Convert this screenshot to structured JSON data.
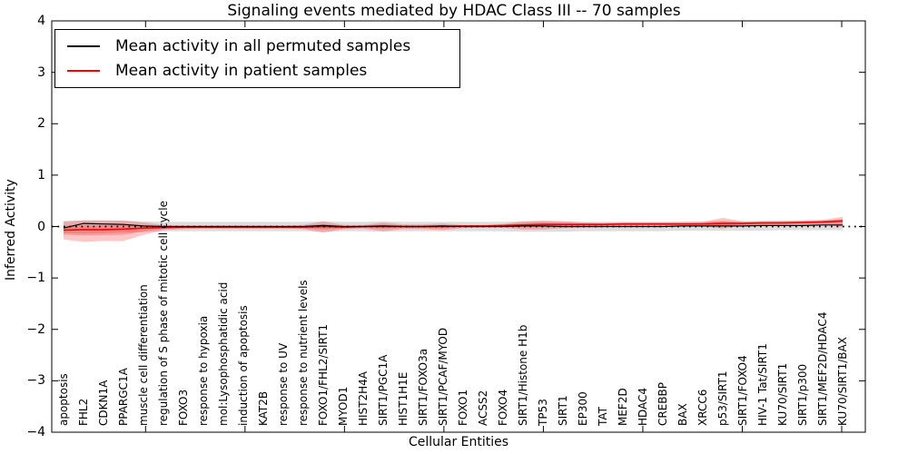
{
  "title": "Signaling events mediated by HDAC Class III -- 70 samples",
  "legend": {
    "items": [
      {
        "label": "Mean activity in all permuted samples",
        "color": "#000000"
      },
      {
        "label": "Mean activity in patient samples",
        "color": "#ff0000"
      }
    ]
  },
  "chart_data": {
    "type": "line",
    "title": "Signaling events mediated by HDAC Class III -- 70 samples",
    "xlabel": "Cellular Entities",
    "ylabel": "Inferred Activity",
    "ylim": [
      -4,
      4
    ],
    "ytick_labels": [
      "4",
      "3",
      "2",
      "1",
      "0",
      "−1",
      "−2",
      "−3",
      "−4"
    ],
    "ytick_values": [
      4,
      3,
      2,
      1,
      0,
      -1,
      -2,
      -3,
      -4
    ],
    "grid": false,
    "zero_line": true,
    "legend_position": "upper left",
    "categories": [
      "apoptosis",
      "FHL2",
      "CDKN1A",
      "PPARGC1A",
      "muscle cell differentiation",
      "regulation of S phase of mitotic cell cycle",
      "FOXO3",
      "response to hypoxia",
      "mol:Lysophosphatidic acid",
      "induction of apoptosis",
      "KAT2B",
      "response to UV",
      "response to nutrient levels",
      "FOXO1/FHL2/SIRT1",
      "MYOD1",
      "HIST2H4A",
      "SIRT1/PGC1A",
      "HIST1H1E",
      "SIRT1/FOXO3a",
      "SIRT1/PCAF/MYOD",
      "FOXO1",
      "ACSS2",
      "FOXO4",
      "SIRT1/Histone H1b",
      "TP53",
      "SIRT1",
      "EP300",
      "TAT",
      "MEF2D",
      "HDAC4",
      "CREBBP",
      "BAX",
      "XRCC6",
      "p53/SIRT1",
      "SIRT1/FOXO4",
      "HIV-1 Tat/SIRT1",
      "KU70/SIRT1",
      "SIRT1/p300",
      "SIRT1/MEF2D/HDAC4",
      "KU70/SIRT1/BAX"
    ],
    "series": [
      {
        "name": "Mean activity in all permuted samples",
        "color": "#000000",
        "band_color": "rgba(0,0,0,0.13)",
        "values": [
          -0.03,
          0.06,
          0.05,
          0.04,
          0.01,
          0.0,
          0.0,
          0.0,
          0.0,
          0.0,
          0.0,
          0.0,
          0.0,
          0.02,
          0.0,
          0.0,
          0.01,
          0.0,
          0.0,
          0.01,
          0.0,
          0.0,
          0.0,
          0.01,
          0.01,
          0.0,
          0.0,
          0.0,
          0.0,
          0.0,
          0.0,
          0.01,
          0.01,
          0.01,
          0.01,
          0.02,
          0.02,
          0.02,
          0.03,
          0.03
        ],
        "band_upper": [
          0.1,
          0.12,
          0.12,
          0.11,
          0.1,
          0.09,
          0.09,
          0.09,
          0.09,
          0.09,
          0.09,
          0.09,
          0.09,
          0.1,
          0.09,
          0.09,
          0.1,
          0.09,
          0.09,
          0.09,
          0.09,
          0.09,
          0.09,
          0.1,
          0.1,
          0.1,
          0.09,
          0.09,
          0.09,
          0.09,
          0.09,
          0.1,
          0.1,
          0.1,
          0.1,
          0.1,
          0.11,
          0.11,
          0.12,
          0.12
        ],
        "band_lower": [
          -0.13,
          -0.14,
          -0.13,
          -0.12,
          -0.11,
          -0.09,
          -0.09,
          -0.09,
          -0.09,
          -0.09,
          -0.09,
          -0.09,
          -0.09,
          -0.1,
          -0.09,
          -0.09,
          -0.1,
          -0.09,
          -0.09,
          -0.09,
          -0.09,
          -0.09,
          -0.09,
          -0.1,
          -0.1,
          -0.1,
          -0.09,
          -0.09,
          -0.09,
          -0.09,
          -0.09,
          -0.08,
          -0.08,
          -0.08,
          -0.08,
          -0.08,
          -0.07,
          -0.07,
          -0.07,
          -0.07
        ]
      },
      {
        "name": "Mean activity in patient samples",
        "color": "#ff0000",
        "band_color": "rgba(255,0,0,0.22)",
        "values": [
          -0.07,
          -0.06,
          -0.06,
          -0.05,
          -0.03,
          -0.02,
          -0.01,
          -0.01,
          -0.01,
          -0.01,
          -0.01,
          -0.01,
          -0.01,
          0.0,
          -0.01,
          0.0,
          0.0,
          0.0,
          0.0,
          0.0,
          0.01,
          0.01,
          0.02,
          0.03,
          0.04,
          0.04,
          0.04,
          0.04,
          0.05,
          0.05,
          0.05,
          0.05,
          0.05,
          0.06,
          0.06,
          0.07,
          0.07,
          0.08,
          0.09,
          0.11
        ],
        "band_upper": [
          0.1,
          0.12,
          0.12,
          0.12,
          0.08,
          0.03,
          0.02,
          0.02,
          0.02,
          0.02,
          0.02,
          0.02,
          0.03,
          0.1,
          0.03,
          0.03,
          0.08,
          0.04,
          0.04,
          0.06,
          0.03,
          0.03,
          0.05,
          0.1,
          0.12,
          0.1,
          0.08,
          0.07,
          0.08,
          0.08,
          0.08,
          0.08,
          0.09,
          0.17,
          0.1,
          0.11,
          0.11,
          0.12,
          0.13,
          0.19
        ],
        "band_lower": [
          -0.25,
          -0.3,
          -0.28,
          -0.28,
          -0.16,
          -0.07,
          -0.05,
          -0.04,
          -0.04,
          -0.04,
          -0.04,
          -0.04,
          -0.05,
          -0.12,
          -0.05,
          -0.04,
          -0.09,
          -0.05,
          -0.05,
          -0.07,
          -0.03,
          -0.02,
          -0.02,
          -0.06,
          -0.06,
          -0.03,
          -0.02,
          -0.01,
          0.0,
          0.01,
          0.01,
          0.01,
          0.01,
          -0.04,
          0.02,
          0.02,
          0.03,
          0.03,
          0.04,
          -0.01
        ]
      }
    ]
  }
}
